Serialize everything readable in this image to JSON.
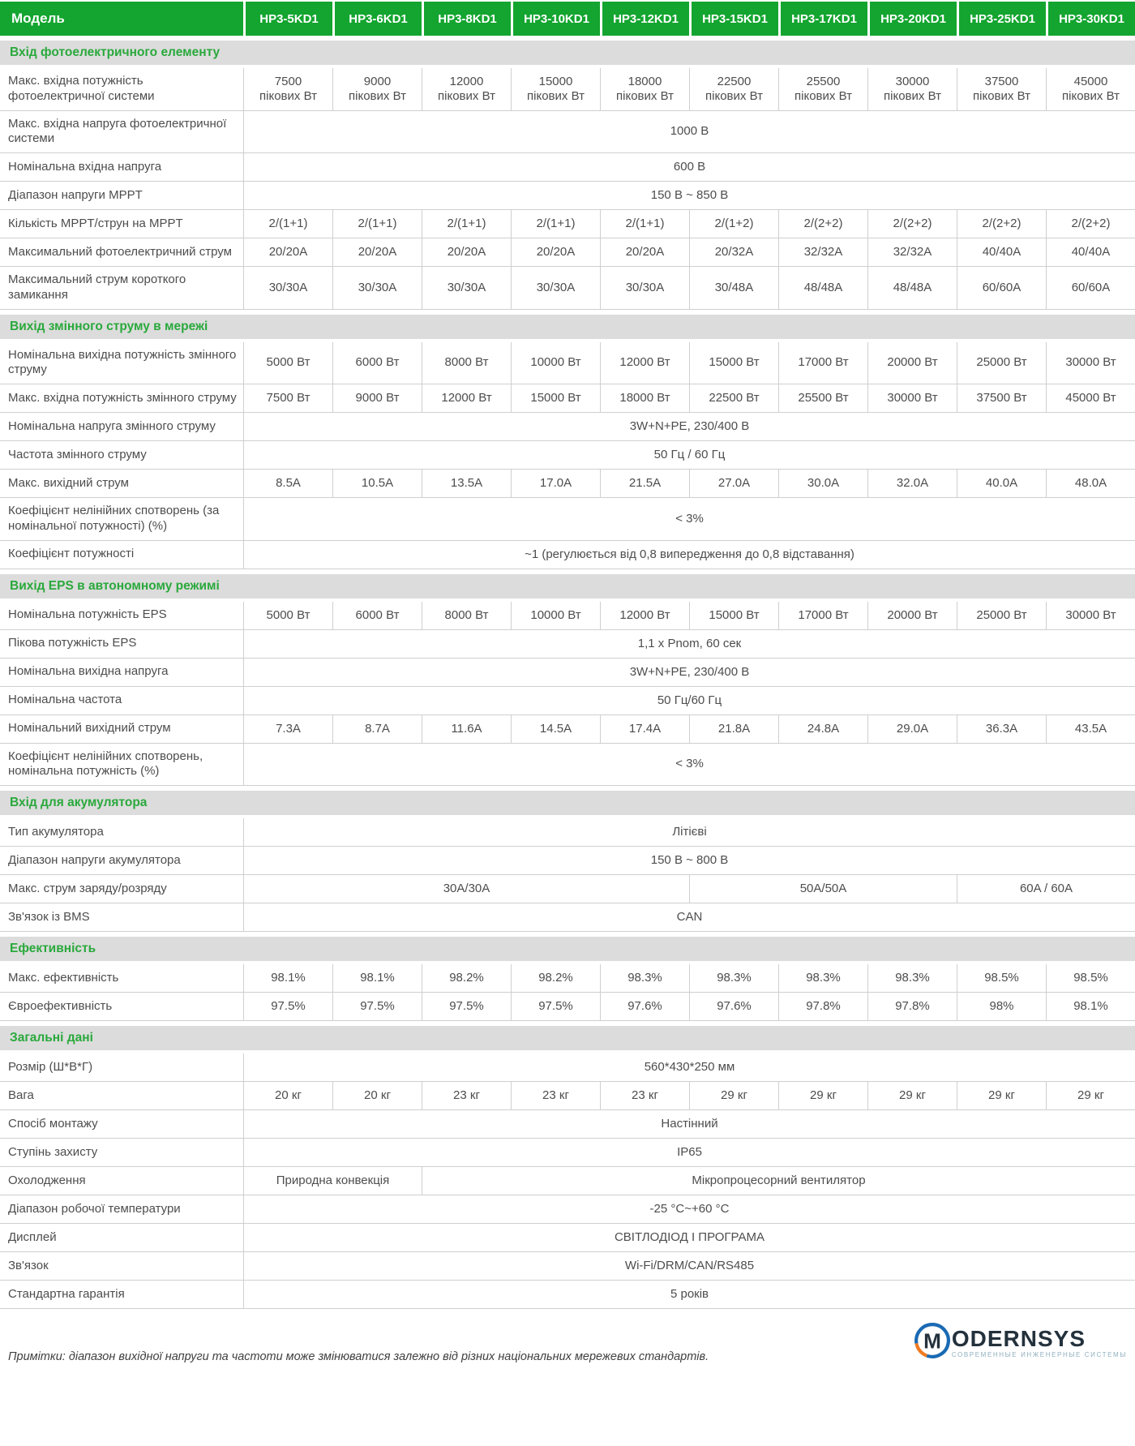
{
  "table": {
    "header": {
      "label": "Модель",
      "models": [
        "HP3-5KD1",
        "HP3-6KD1",
        "HP3-8KD1",
        "HP3-10KD1",
        "HP3-12KD1",
        "HP3-15KD1",
        "HP3-17KD1",
        "HP3-20KD1",
        "HP3-25KD1",
        "HP3-30KD1"
      ]
    },
    "sections": [
      {
        "title": "Вхід фотоелектричного елементу",
        "rows": [
          {
            "label": "Макс. вхідна потужність фотоелектричної системи",
            "cells": [
              {
                "text": "7500\nпікових Вт"
              },
              {
                "text": "9000\nпікових Вт"
              },
              {
                "text": "12000\nпікових Вт"
              },
              {
                "text": "15000\nпікових Вт"
              },
              {
                "text": "18000\nпікових Вт"
              },
              {
                "text": "22500\nпікових Вт"
              },
              {
                "text": "25500\nпікових Вт"
              },
              {
                "text": "30000\nпікових Вт"
              },
              {
                "text": "37500\nпікових Вт"
              },
              {
                "text": "45000\nпікових Вт"
              }
            ]
          },
          {
            "label": "Макс. вхідна напруга фотоелектричної системи",
            "cells": [
              {
                "text": "1000 В",
                "span": 10
              }
            ]
          },
          {
            "label": "Номінальна вхідна напруга",
            "cells": [
              {
                "text": "600 В",
                "span": 10
              }
            ]
          },
          {
            "label": "Діапазон напруги MPPT",
            "cells": [
              {
                "text": "150 В ~ 850 В",
                "span": 10
              }
            ]
          },
          {
            "label": "Кількість MPPT/струн на MPPT",
            "cells": [
              {
                "text": "2/(1+1)"
              },
              {
                "text": "2/(1+1)"
              },
              {
                "text": "2/(1+1)"
              },
              {
                "text": "2/(1+1)"
              },
              {
                "text": "2/(1+1)"
              },
              {
                "text": "2/(1+2)"
              },
              {
                "text": "2/(2+2)"
              },
              {
                "text": "2/(2+2)"
              },
              {
                "text": "2/(2+2)"
              },
              {
                "text": "2/(2+2)"
              }
            ]
          },
          {
            "label": "Максимальний фотоелектричний струм",
            "cells": [
              {
                "text": "20/20A"
              },
              {
                "text": "20/20A"
              },
              {
                "text": "20/20A"
              },
              {
                "text": "20/20A"
              },
              {
                "text": "20/20A"
              },
              {
                "text": "20/32A"
              },
              {
                "text": "32/32A"
              },
              {
                "text": "32/32A"
              },
              {
                "text": "40/40A"
              },
              {
                "text": "40/40A"
              }
            ]
          },
          {
            "label": "Максимальний струм короткого замикання",
            "cells": [
              {
                "text": "30/30A"
              },
              {
                "text": "30/30A"
              },
              {
                "text": "30/30A"
              },
              {
                "text": "30/30A"
              },
              {
                "text": "30/30A"
              },
              {
                "text": "30/48A"
              },
              {
                "text": "48/48A"
              },
              {
                "text": "48/48A"
              },
              {
                "text": "60/60A"
              },
              {
                "text": "60/60A"
              }
            ]
          }
        ]
      },
      {
        "title": "Вихід змінного струму в мережі",
        "rows": [
          {
            "label": "Номінальна вихідна потужність змінного струму",
            "cells": [
              {
                "text": "5000 Вт"
              },
              {
                "text": "6000 Вт"
              },
              {
                "text": "8000 Вт"
              },
              {
                "text": "10000 Вт"
              },
              {
                "text": "12000 Вт"
              },
              {
                "text": "15000 Вт"
              },
              {
                "text": "17000 Вт"
              },
              {
                "text": "20000 Вт"
              },
              {
                "text": "25000 Вт"
              },
              {
                "text": "30000 Вт"
              }
            ]
          },
          {
            "label": "Макс. вхідна потужність змінного струму",
            "cells": [
              {
                "text": "7500 Вт"
              },
              {
                "text": "9000 Вт"
              },
              {
                "text": "12000 Вт"
              },
              {
                "text": "15000 Вт"
              },
              {
                "text": "18000 Вт"
              },
              {
                "text": "22500 Вт"
              },
              {
                "text": "25500 Вт"
              },
              {
                "text": "30000 Вт"
              },
              {
                "text": "37500 Вт"
              },
              {
                "text": "45000 Вт"
              }
            ]
          },
          {
            "label": "Номінальна напруга змінного струму",
            "cells": [
              {
                "text": "3W+N+PE, 230/400 В",
                "span": 10
              }
            ]
          },
          {
            "label": "Частота змінного струму",
            "cells": [
              {
                "text": "50 Гц / 60 Гц",
                "span": 10
              }
            ]
          },
          {
            "label": "Макс. вихідний струм",
            "cells": [
              {
                "text": "8.5A"
              },
              {
                "text": "10.5A"
              },
              {
                "text": "13.5A"
              },
              {
                "text": "17.0A"
              },
              {
                "text": "21.5A"
              },
              {
                "text": "27.0A"
              },
              {
                "text": "30.0A"
              },
              {
                "text": "32.0A"
              },
              {
                "text": "40.0A"
              },
              {
                "text": "48.0A"
              }
            ]
          },
          {
            "label": "Коефіцієнт нелінійних спотворень (за номінальної потужності) (%)",
            "cells": [
              {
                "text": "< 3%",
                "span": 10
              }
            ]
          },
          {
            "label": "Коефіцієнт потужності",
            "cells": [
              {
                "text": "~1 (регулюється від 0,8 випередження до 0,8 відставання)",
                "span": 10
              }
            ]
          }
        ]
      },
      {
        "title": "Вихід EPS в автономному режимі",
        "rows": [
          {
            "label": "Номінальна потужність EPS",
            "cells": [
              {
                "text": "5000 Вт"
              },
              {
                "text": "6000 Вт"
              },
              {
                "text": "8000 Вт"
              },
              {
                "text": "10000 Вт"
              },
              {
                "text": "12000 Вт"
              },
              {
                "text": "15000 Вт"
              },
              {
                "text": "17000 Вт"
              },
              {
                "text": "20000 Вт"
              },
              {
                "text": "25000 Вт"
              },
              {
                "text": "30000 Вт"
              }
            ]
          },
          {
            "label": "Пікова потужність EPS",
            "cells": [
              {
                "text": "1,1 x Pnom, 60 сек",
                "span": 10
              }
            ]
          },
          {
            "label": "Номінальна вихідна напруга",
            "cells": [
              {
                "text": "3W+N+PE, 230/400 В",
                "span": 10
              }
            ]
          },
          {
            "label": "Номінальна частота",
            "cells": [
              {
                "text": "50 Гц/60 Гц",
                "span": 10
              }
            ]
          },
          {
            "label": "Номінальний вихідний струм",
            "cells": [
              {
                "text": "7.3A"
              },
              {
                "text": "8.7A"
              },
              {
                "text": "11.6A"
              },
              {
                "text": "14.5A"
              },
              {
                "text": "17.4A"
              },
              {
                "text": "21.8A"
              },
              {
                "text": "24.8A"
              },
              {
                "text": "29.0A"
              },
              {
                "text": "36.3A"
              },
              {
                "text": "43.5A"
              }
            ]
          },
          {
            "label": "Коефіцієнт нелінійних спотворень, номінальна потужність (%)",
            "cells": [
              {
                "text": "< 3%",
                "span": 10
              }
            ]
          }
        ]
      },
      {
        "title": "Вхід для акумулятора",
        "rows": [
          {
            "label": "Тип акумулятора",
            "cells": [
              {
                "text": "Літієві",
                "span": 10
              }
            ]
          },
          {
            "label": "Діапазон напруги акумулятора",
            "cells": [
              {
                "text": "150 В ~ 800 В",
                "span": 10
              }
            ]
          },
          {
            "label": "Макс. струм заряду/розряду",
            "cells": [
              {
                "text": "30A/30A",
                "span": 5
              },
              {
                "text": "50A/50A",
                "span": 3
              },
              {
                "text": "60A / 60A",
                "span": 2
              }
            ]
          },
          {
            "label": "Зв'язок із BMS",
            "cells": [
              {
                "text": "CAN",
                "span": 10
              }
            ]
          }
        ]
      },
      {
        "title": "Ефективність",
        "rows": [
          {
            "label": "Макс. ефективність",
            "cells": [
              {
                "text": "98.1%"
              },
              {
                "text": "98.1%"
              },
              {
                "text": "98.2%"
              },
              {
                "text": "98.2%"
              },
              {
                "text": "98.3%"
              },
              {
                "text": "98.3%"
              },
              {
                "text": "98.3%"
              },
              {
                "text": "98.3%"
              },
              {
                "text": "98.5%"
              },
              {
                "text": "98.5%"
              }
            ]
          },
          {
            "label": "Євроефективність",
            "cells": [
              {
                "text": "97.5%"
              },
              {
                "text": "97.5%"
              },
              {
                "text": "97.5%"
              },
              {
                "text": "97.5%"
              },
              {
                "text": "97.6%"
              },
              {
                "text": "97.6%"
              },
              {
                "text": "97.8%"
              },
              {
                "text": "97.8%"
              },
              {
                "text": "98%"
              },
              {
                "text": "98.1%"
              }
            ]
          }
        ]
      },
      {
        "title": "Загальні дані",
        "rows": [
          {
            "label": "Розмір (Ш*В*Г)",
            "cells": [
              {
                "text": "560*430*250 мм",
                "span": 10
              }
            ]
          },
          {
            "label": "Вага",
            "cells": [
              {
                "text": "20 кг"
              },
              {
                "text": "20 кг"
              },
              {
                "text": "23 кг"
              },
              {
                "text": "23 кг"
              },
              {
                "text": "23 кг"
              },
              {
                "text": "29 кг"
              },
              {
                "text": "29 кг"
              },
              {
                "text": "29 кг"
              },
              {
                "text": "29 кг"
              },
              {
                "text": "29 кг"
              }
            ]
          },
          {
            "label": "Спосіб монтажу",
            "cells": [
              {
                "text": "Настінний",
                "span": 10
              }
            ]
          },
          {
            "label": "Ступінь захисту",
            "cells": [
              {
                "text": "IP65",
                "span": 10
              }
            ]
          },
          {
            "label": "Охолодження",
            "cells": [
              {
                "text": "Природна конвекція",
                "span": 2
              },
              {
                "text": "Мікропроцесорний вентилятор",
                "span": 8
              }
            ]
          },
          {
            "label": "Діапазон робочої температури",
            "cells": [
              {
                "text": "-25 °C~+60 °C",
                "span": 10
              }
            ]
          },
          {
            "label": "Дисплей",
            "cells": [
              {
                "text": "СВІТЛОДІОД І ПРОГРАМА",
                "span": 10
              }
            ]
          },
          {
            "label": "Зв'язок",
            "cells": [
              {
                "text": "Wi-Fi/DRM/CAN/RS485",
                "span": 10
              }
            ]
          },
          {
            "label": "Стандартна гарантія",
            "cells": [
              {
                "text": "5 років",
                "span": 10
              }
            ]
          }
        ]
      }
    ]
  },
  "footer": {
    "note": "Примітки: діапазон вихідної напруги та частоти може змінюватися залежно від різних національних мережевих стандартів.",
    "brand": {
      "initial": "M",
      "rest": "ODERNSYS",
      "tagline": "СОВРЕМЕННЫЕ ИНЖЕНЕРНЫЕ СИСТЕМЫ"
    }
  },
  "colors": {
    "header_green": "#13a52f",
    "section_green": "#2aa93c",
    "band_gray": "#dcdcdc",
    "border_gray": "#cfcfcf",
    "brand_blue": "#1a6ab3",
    "brand_orange": "#f07b22"
  }
}
